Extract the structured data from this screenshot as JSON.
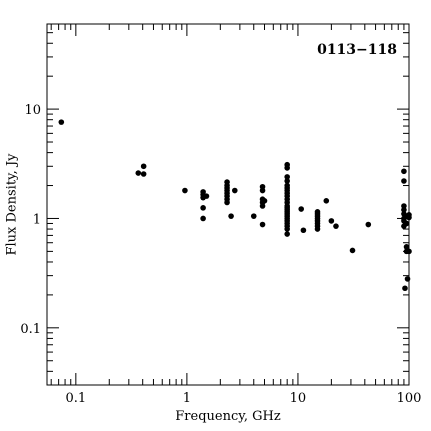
{
  "chart_data": {
    "type": "scatter",
    "title": "0113−118",
    "xlabel": "Frequency, GHz",
    "ylabel": "Flux Density, Jy",
    "xscale": "log",
    "yscale": "log",
    "xlim": [
      0.055,
      100
    ],
    "ylim": [
      0.03,
      60
    ],
    "x_ticks": [
      {
        "value": 0.1,
        "label": "0.1"
      },
      {
        "value": 1,
        "label": "1"
      },
      {
        "value": 10,
        "label": "10"
      },
      {
        "value": 100,
        "label": "100"
      }
    ],
    "y_ticks": [
      {
        "value": 0.1,
        "label": "0.1"
      },
      {
        "value": 1,
        "label": "1"
      },
      {
        "value": 10,
        "label": "10"
      }
    ],
    "points": [
      [
        0.074,
        7.6
      ],
      [
        0.365,
        2.6
      ],
      [
        0.408,
        2.55
      ],
      [
        0.408,
        3.0
      ],
      [
        0.96,
        1.8
      ],
      [
        1.4,
        1.75
      ],
      [
        1.4,
        1.65
      ],
      [
        1.4,
        1.55
      ],
      [
        1.4,
        1.25
      ],
      [
        1.4,
        1.0
      ],
      [
        1.5,
        1.6
      ],
      [
        2.3,
        2.15
      ],
      [
        2.3,
        2.0
      ],
      [
        2.3,
        1.9
      ],
      [
        2.3,
        1.8
      ],
      [
        2.3,
        1.7
      ],
      [
        2.3,
        1.6
      ],
      [
        2.3,
        1.5
      ],
      [
        2.3,
        1.4
      ],
      [
        2.5,
        1.05
      ],
      [
        2.7,
        1.8
      ],
      [
        4.0,
        1.05
      ],
      [
        4.8,
        1.95
      ],
      [
        4.8,
        1.8
      ],
      [
        4.8,
        1.5
      ],
      [
        4.8,
        1.4
      ],
      [
        4.8,
        1.3
      ],
      [
        4.8,
        0.88
      ],
      [
        5.0,
        1.45
      ],
      [
        8.0,
        3.1
      ],
      [
        8.0,
        2.9
      ],
      [
        8.0,
        2.4
      ],
      [
        8.0,
        2.2
      ],
      [
        8.0,
        2.0
      ],
      [
        8.0,
        1.9
      ],
      [
        8.0,
        1.8
      ],
      [
        8.0,
        1.7
      ],
      [
        8.0,
        1.6
      ],
      [
        8.0,
        1.5
      ],
      [
        8.0,
        1.4
      ],
      [
        8.0,
        1.3
      ],
      [
        8.0,
        1.25
      ],
      [
        8.0,
        1.2
      ],
      [
        8.0,
        1.15
      ],
      [
        8.0,
        1.1
      ],
      [
        8.0,
        1.05
      ],
      [
        8.0,
        1.0
      ],
      [
        8.0,
        0.95
      ],
      [
        8.0,
        0.9
      ],
      [
        8.0,
        0.85
      ],
      [
        8.0,
        0.8
      ],
      [
        8.0,
        0.72
      ],
      [
        10.7,
        1.22
      ],
      [
        11.2,
        0.78
      ],
      [
        15.0,
        1.15
      ],
      [
        15.0,
        1.1
      ],
      [
        15.0,
        1.05
      ],
      [
        15.0,
        1.0
      ],
      [
        15.0,
        0.95
      ],
      [
        15.0,
        0.9
      ],
      [
        15.0,
        0.85
      ],
      [
        15.0,
        0.8
      ],
      [
        18.0,
        1.45
      ],
      [
        20.0,
        0.95
      ],
      [
        22.0,
        0.85
      ],
      [
        31.0,
        0.51
      ],
      [
        43.0,
        0.88
      ],
      [
        90.0,
        2.7
      ],
      [
        90.0,
        2.2
      ],
      [
        90.0,
        1.3
      ],
      [
        90.0,
        1.2
      ],
      [
        90.0,
        1.1
      ],
      [
        90.0,
        1.0
      ],
      [
        90.0,
        0.95
      ],
      [
        90.0,
        0.85
      ],
      [
        95.0,
        1.05
      ],
      [
        95.0,
        0.9
      ],
      [
        95.0,
        0.55
      ],
      [
        95.0,
        0.5
      ],
      [
        97.0,
        0.28
      ],
      [
        92.0,
        0.23
      ],
      [
        100.0,
        1.08
      ],
      [
        100.0,
        1.02
      ],
      [
        100.0,
        0.5
      ]
    ]
  }
}
